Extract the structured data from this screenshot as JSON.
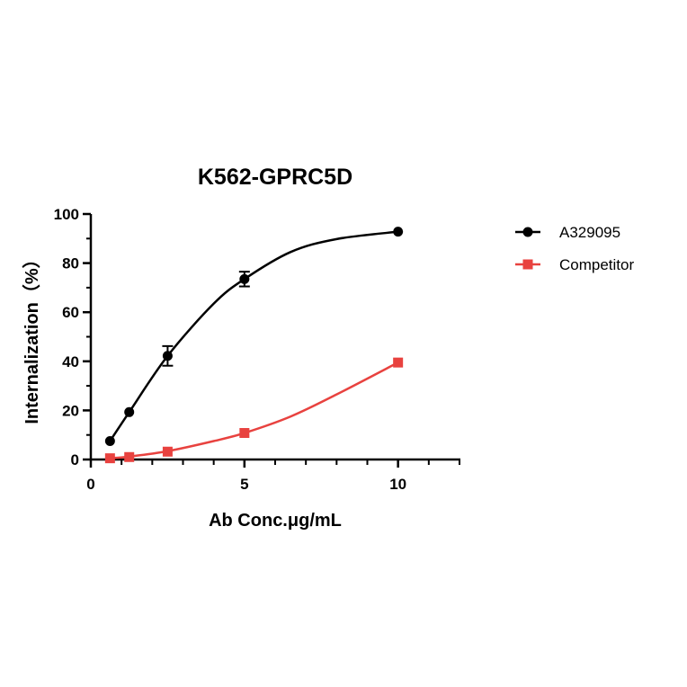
{
  "chart_data": {
    "type": "scatter",
    "title": "K562-GPRC5D",
    "xlabel": "Ab Conc.μg/mL",
    "ylabel": "Internalization（%）",
    "xlim": [
      0,
      12
    ],
    "ylim": [
      0,
      100
    ],
    "xticks": [
      0,
      5,
      10
    ],
    "yticks": [
      0,
      20,
      40,
      60,
      80,
      100
    ],
    "legend_position": "right",
    "grid": false,
    "series": [
      {
        "name": "A329095",
        "color": "#000000",
        "marker": "circle",
        "x": [
          0.625,
          1.25,
          2.5,
          5,
          10
        ],
        "y": [
          7.5,
          19.3,
          42.2,
          73.5,
          92.8
        ],
        "error": [
          0,
          0,
          4,
          3,
          0
        ],
        "curve": [
          [
            0.625,
            7.5
          ],
          [
            1.25,
            19.3
          ],
          [
            2.5,
            42.2
          ],
          [
            4,
            63.5
          ],
          [
            5,
            73.5
          ],
          [
            6.5,
            84.5
          ],
          [
            8,
            89.8
          ],
          [
            10,
            92.8
          ]
        ]
      },
      {
        "name": "Competitor",
        "color": "#e8423f",
        "marker": "square",
        "x": [
          0.625,
          1.25,
          2.5,
          5,
          10
        ],
        "y": [
          0.5,
          1.0,
          3.2,
          10.8,
          39.5
        ],
        "error": [
          0,
          0,
          0,
          0,
          0
        ],
        "curve": [
          [
            0.625,
            0.5
          ],
          [
            1.25,
            1.2
          ],
          [
            2.5,
            3.4
          ],
          [
            4,
            7.5
          ],
          [
            5,
            10.8
          ],
          [
            6.5,
            17.5
          ],
          [
            8,
            26.5
          ],
          [
            10,
            39.5
          ]
        ]
      }
    ]
  }
}
